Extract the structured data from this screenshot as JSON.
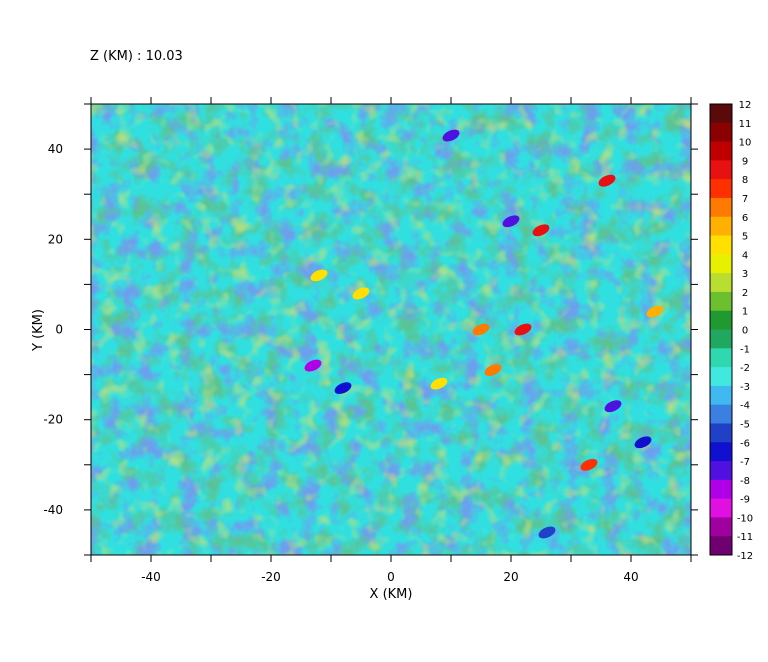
{
  "chart_data": {
    "type": "heatmap",
    "title": "Z (KM) : 10.03",
    "xlabel": "X (KM)",
    "ylabel": "Y (KM)",
    "xlim": [
      -50,
      50
    ],
    "ylim": [
      -50,
      50
    ],
    "x_ticks": [
      -40,
      -20,
      0,
      20,
      40
    ],
    "y_ticks": [
      -40,
      -20,
      0,
      20,
      40
    ],
    "colorbar": {
      "levels": [
        12,
        11,
        10,
        9,
        8,
        7,
        6,
        5,
        4,
        3,
        2,
        1,
        0,
        -1,
        -2,
        -3,
        -4,
        -5,
        -6,
        -7,
        -8,
        -9,
        -10,
        -11,
        -12
      ],
      "colors": [
        "#5a0a0a",
        "#8b0000",
        "#c00000",
        "#e81010",
        "#ff3000",
        "#ff7a00",
        "#ffb000",
        "#ffe000",
        "#e8f000",
        "#b8de30",
        "#6cc030",
        "#209a30",
        "#20a860",
        "#30d8b0",
        "#40e8e0",
        "#40b8f0",
        "#3a80e0",
        "#2040c8",
        "#1010d0",
        "#5010e0",
        "#b000e8",
        "#e010e0",
        "#a000a0",
        "#700070"
      ]
    },
    "features": [
      {
        "x": -5,
        "y": 8,
        "value": 4
      },
      {
        "x": 10,
        "y": 43,
        "value": -8
      },
      {
        "x": 15,
        "y": 0,
        "value": 6
      },
      {
        "x": 22,
        "y": 0,
        "value": 8
      },
      {
        "x": 25,
        "y": 22,
        "value": 8
      },
      {
        "x": 36,
        "y": 33,
        "value": 8
      },
      {
        "x": 17,
        "y": -9,
        "value": 6
      },
      {
        "x": -13,
        "y": -8,
        "value": -9
      },
      {
        "x": -8,
        "y": -13,
        "value": -7
      },
      {
        "x": 33,
        "y": -30,
        "value": 7
      },
      {
        "x": 37,
        "y": -17,
        "value": -8
      },
      {
        "x": 42,
        "y": -25,
        "value": -7
      },
      {
        "x": 20,
        "y": 24,
        "value": -8
      },
      {
        "x": -12,
        "y": 12,
        "value": 4
      },
      {
        "x": 8,
        "y": -12,
        "value": 4
      },
      {
        "x": 44,
        "y": 4,
        "value": 5
      },
      {
        "x": 26,
        "y": -45,
        "value": -6
      }
    ]
  }
}
